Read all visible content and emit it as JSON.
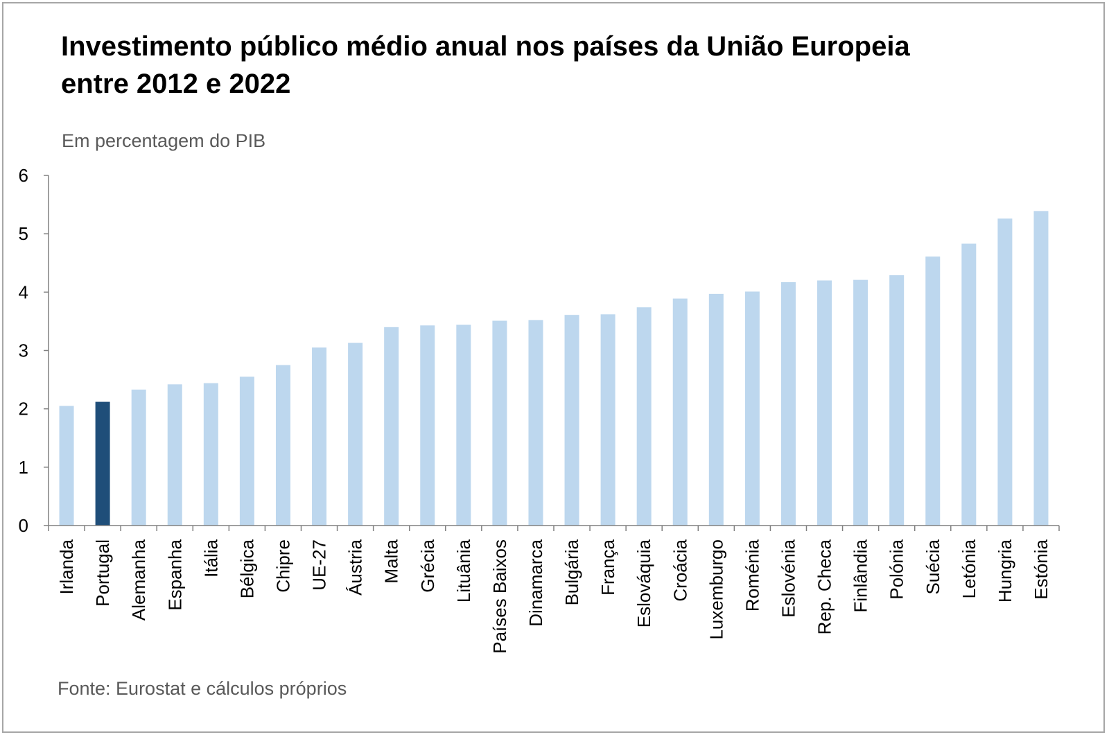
{
  "header": {
    "title": "Investimento público médio anual nos países da União Europeia entre 2012 e 2022",
    "subtitle": "Em percentagem do PIB"
  },
  "footer": {
    "source": "Fonte: Eurostat e cálculos próprios"
  },
  "colors": {
    "bar": "#bdd7ee",
    "highlight": "#1f4e79",
    "axis": "#808080"
  },
  "chart_data": {
    "type": "bar",
    "title": "Investimento público médio anual nos países da União Europeia entre 2012 e 2022",
    "subtitle": "Em percentagem do PIB",
    "xlabel": "",
    "ylabel": "",
    "ylim": [
      0,
      6
    ],
    "yticks": [
      0,
      1,
      2,
      3,
      4,
      5,
      6
    ],
    "grid": false,
    "highlight": "Portugal",
    "categories": [
      "Irlanda",
      "Portugal",
      "Alemanha",
      "Espanha",
      "Itália",
      "Bélgica",
      "Chipre",
      "UE-27",
      "Áustria",
      "Malta",
      "Grécia",
      "Lituânia",
      "Países Baixos",
      "Dinamarca",
      "Bulgária",
      "França",
      "Eslováquia",
      "Croácia",
      "Luxemburgo",
      "Roménia",
      "Eslovénia",
      "Rep. Checa",
      "Finlândia",
      "Polónia",
      "Suécia",
      "Letónia",
      "Hungria",
      "Estónia"
    ],
    "values": [
      2.05,
      2.12,
      2.33,
      2.42,
      2.44,
      2.55,
      2.75,
      3.05,
      3.13,
      3.4,
      3.43,
      3.44,
      3.51,
      3.52,
      3.61,
      3.62,
      3.74,
      3.89,
      3.97,
      4.01,
      4.17,
      4.2,
      4.21,
      4.29,
      4.61,
      4.83,
      5.26,
      5.39
    ]
  }
}
